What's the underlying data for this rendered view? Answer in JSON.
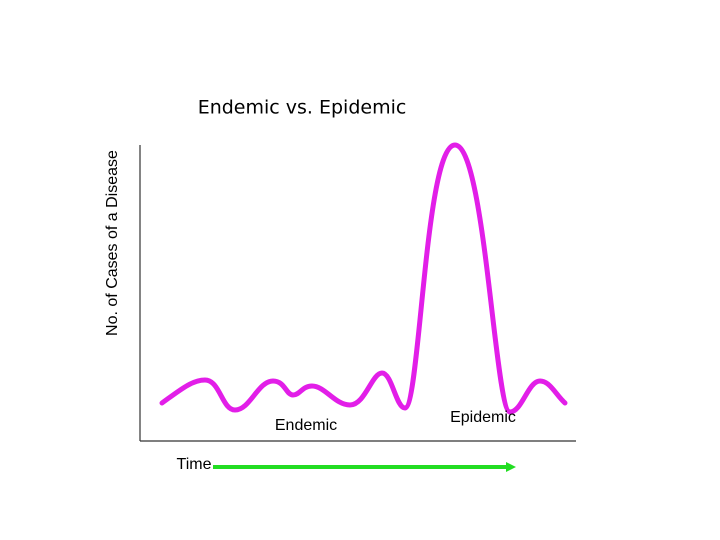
{
  "title": "Endemic vs. Epidemic",
  "y_axis_label": "No. of Cases of a Disease",
  "x_axis_label": "Time",
  "labels": {
    "endemic": "Endemic",
    "epidemic": "Epidemic"
  }
}
